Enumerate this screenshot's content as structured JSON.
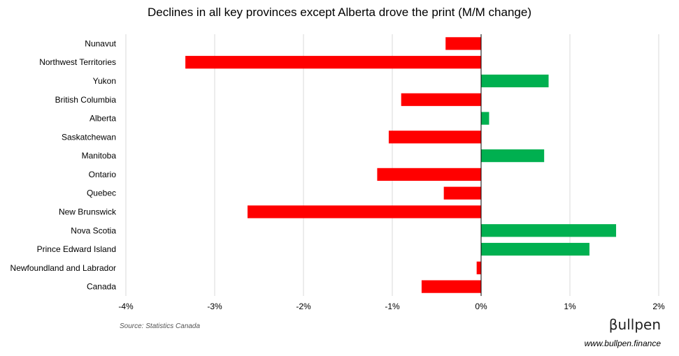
{
  "chart_data": {
    "type": "bar",
    "orientation": "horizontal",
    "title": "Declines in all key provinces except Alberta drove the print (M/M change)",
    "categories": [
      "Nunavut",
      "Northwest Territories",
      "Yukon",
      "British Columbia",
      "Alberta",
      "Saskatchewan",
      "Manitoba",
      "Ontario",
      "Quebec",
      "New Brunswick",
      "Nova Scotia",
      "Prince Edward Island",
      "Newfoundland and Labrador",
      "Canada"
    ],
    "values": [
      -0.4,
      -3.33,
      0.76,
      -0.9,
      0.09,
      -1.04,
      0.71,
      -1.17,
      -0.42,
      -2.63,
      1.52,
      1.22,
      -0.05,
      -0.67
    ],
    "xlim": [
      -4,
      2
    ],
    "x_ticks": [
      -4,
      -3,
      -2,
      -1,
      0,
      1,
      2
    ],
    "x_tick_labels": [
      "-4%",
      "-3%",
      "-2%",
      "-1%",
      "0%",
      "1%",
      "2%"
    ],
    "grid": "vertical",
    "colors": {
      "positive": "#00b050",
      "negative": "#ff0000",
      "grid": "#d9d9d9"
    }
  },
  "source": "Source: Statistics Canada",
  "brand": {
    "logo_text": "βullpen",
    "url": "www.bullpen.finance"
  }
}
